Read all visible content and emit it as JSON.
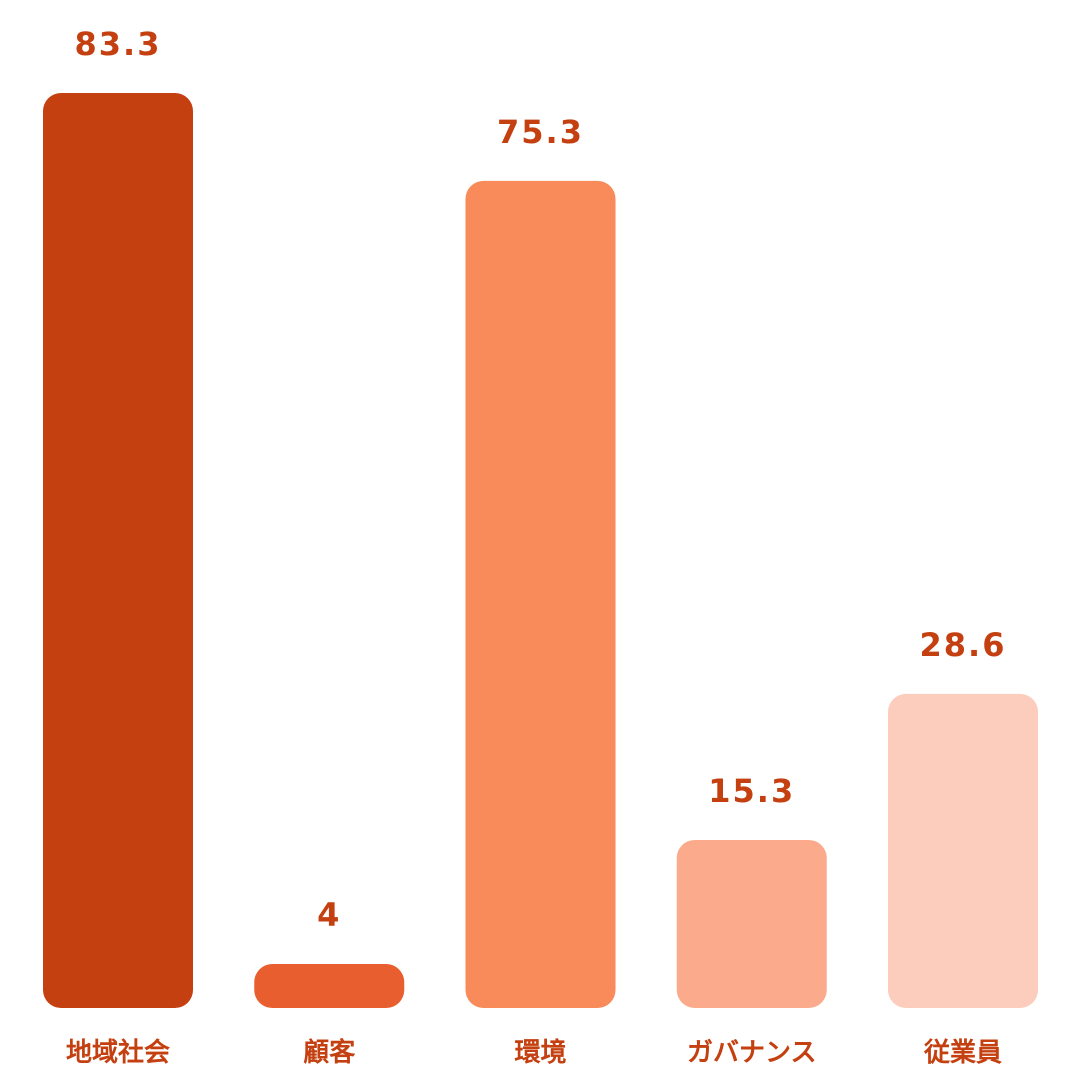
{
  "chart_data": {
    "type": "bar",
    "title": "",
    "xlabel": "",
    "ylabel": "",
    "categories": [
      "地域社会",
      "顧客",
      "環境",
      "ガバナンス",
      "従業員"
    ],
    "values": [
      83.3,
      4,
      75.3,
      15.3,
      28.6
    ],
    "value_labels": [
      "83.3",
      "4",
      "75.3",
      "15.3",
      "28.6"
    ],
    "colors": [
      "#c54010",
      "#e95e2f",
      "#f98a59",
      "#fbab8b",
      "#fccdbc"
    ],
    "label_color": "#c54010",
    "ylim": [
      0,
      83.3
    ],
    "grid": false,
    "legend": "none"
  }
}
